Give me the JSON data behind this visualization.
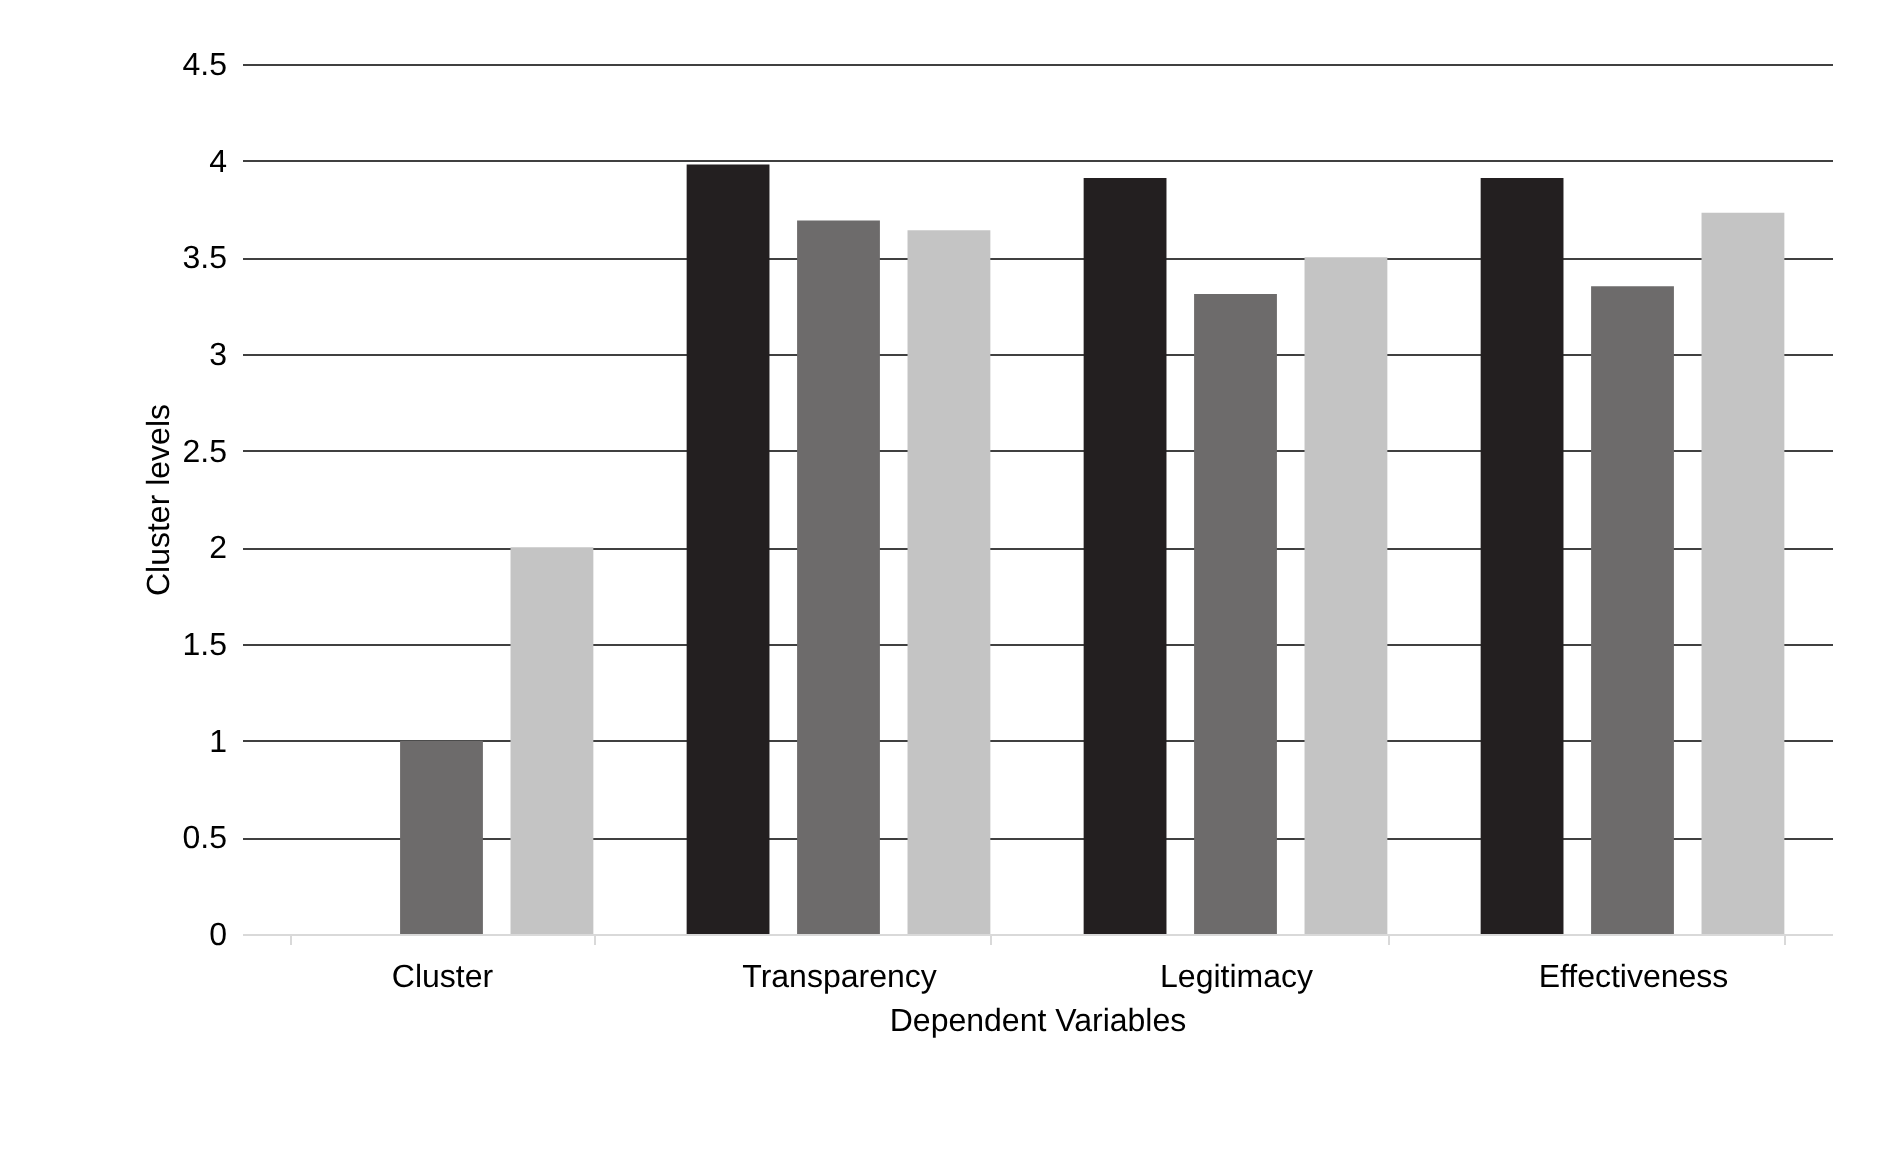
{
  "chart_data": {
    "type": "bar",
    "xlabel": "Dependent Variables",
    "ylabel": "Cluster levels",
    "categories": [
      "Cluster",
      "Transparency",
      "Legitimacy",
      "Effectiveness"
    ],
    "series": [
      {
        "color": "#231f20",
        "values": [
          0,
          3.98,
          3.91,
          3.91
        ]
      },
      {
        "color": "#6d6b6b",
        "values": [
          1,
          3.69,
          3.31,
          3.35
        ]
      },
      {
        "color": "#c4c4c4",
        "values": [
          2,
          3.64,
          3.5,
          3.73
        ]
      }
    ],
    "ylim": [
      0,
      4.5
    ],
    "yticks": [
      0,
      0.5,
      1,
      1.5,
      2,
      2.5,
      3,
      3.5,
      4,
      4.5
    ],
    "grid": "y",
    "legend": false
  }
}
